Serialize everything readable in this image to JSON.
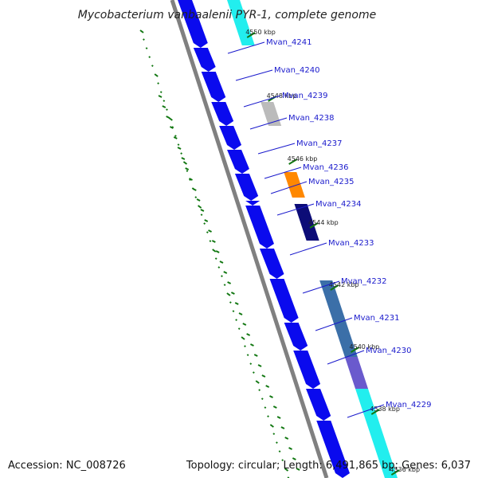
{
  "title": "Mycobacterium vanbaalenii PYR-1, complete genome",
  "footer": {
    "accession": "Accession: NC_008726",
    "stats": "Topology: circular; Length: 6,491,865 bp; Genes: 6,037"
  },
  "kbp_ticks": [
    "4550 kbp",
    "4548 kbp",
    "4546 kbp",
    "4544 kbp",
    "4542 kbp",
    "4540 kbp",
    "4538 kbp",
    "4536 kbp"
  ],
  "genes": [
    "Mvan_4241",
    "Mvan_4240",
    "Mvan_4239",
    "Mvan_4238",
    "Mvan_4237",
    "Mvan_4236",
    "Mvan_4235",
    "Mvan_4234",
    "Mvan_4233",
    "Mvan_4232",
    "Mvan_4231",
    "Mvan_4230",
    "Mvan_4229"
  ],
  "colors": {
    "cds": "#0a0aee",
    "backbone": "#808080",
    "label": "#1a1acc",
    "gc_dash": "#117711",
    "cyan": "#22eeee",
    "gray": "#bbbbbb",
    "orange": "#ff8800",
    "navy": "#0c0c77",
    "steel": "#3b6fa8",
    "lavender": "#6a5acd"
  }
}
